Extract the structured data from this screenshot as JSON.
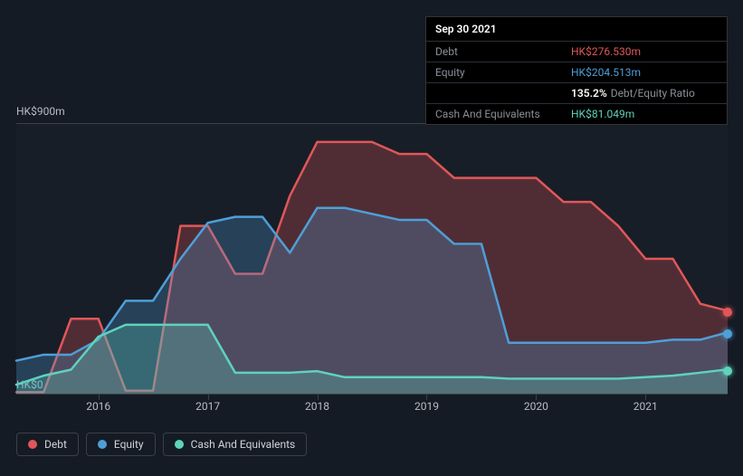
{
  "tooltip": {
    "date": "Sep 30 2021",
    "rows": [
      {
        "label": "Debt",
        "value": "HK$276.530m",
        "color": "#e15759"
      },
      {
        "label": "Equity",
        "value": "HK$204.513m",
        "color": "#4e9fd8"
      },
      {
        "label": "",
        "ratio_value": "135.2%",
        "ratio_label": "Debt/Equity Ratio"
      },
      {
        "label": "Cash And Equivalents",
        "value": "HK$81.049m",
        "color": "#5fd3bc"
      }
    ]
  },
  "chart": {
    "type": "area",
    "background_color": "#151b24",
    "grid_color": "#3a3f48",
    "text_color": "#b8bcc4",
    "y_max_label": "HK$900m",
    "y_min_label": "HK$0",
    "ylim": [
      0,
      900
    ],
    "xlim": [
      2015.25,
      2021.75
    ],
    "x_ticks": [
      2016,
      2017,
      2018,
      2019,
      2020,
      2021
    ],
    "series": [
      {
        "name": "Debt",
        "color": "#e15759",
        "fill_opacity": 0.28,
        "line_width": 2.5,
        "points": [
          [
            2015.25,
            5
          ],
          [
            2015.5,
            5
          ],
          [
            2015.75,
            250
          ],
          [
            2016.0,
            250
          ],
          [
            2016.25,
            10
          ],
          [
            2016.5,
            10
          ],
          [
            2016.75,
            560
          ],
          [
            2017.0,
            560
          ],
          [
            2017.25,
            400
          ],
          [
            2017.5,
            400
          ],
          [
            2017.75,
            660
          ],
          [
            2018.0,
            840
          ],
          [
            2018.25,
            840
          ],
          [
            2018.5,
            840
          ],
          [
            2018.75,
            800
          ],
          [
            2019.0,
            800
          ],
          [
            2019.25,
            720
          ],
          [
            2019.5,
            720
          ],
          [
            2019.75,
            720
          ],
          [
            2020.0,
            720
          ],
          [
            2020.25,
            640
          ],
          [
            2020.5,
            640
          ],
          [
            2020.75,
            560
          ],
          [
            2021.0,
            450
          ],
          [
            2021.25,
            450
          ],
          [
            2021.5,
            300
          ],
          [
            2021.75,
            276.5
          ]
        ]
      },
      {
        "name": "Equity",
        "color": "#4e9fd8",
        "fill_opacity": 0.28,
        "line_width": 2.5,
        "points": [
          [
            2015.25,
            110
          ],
          [
            2015.5,
            130
          ],
          [
            2015.75,
            130
          ],
          [
            2016.0,
            180
          ],
          [
            2016.25,
            310
          ],
          [
            2016.5,
            310
          ],
          [
            2016.75,
            450
          ],
          [
            2017.0,
            570
          ],
          [
            2017.25,
            590
          ],
          [
            2017.5,
            590
          ],
          [
            2017.75,
            470
          ],
          [
            2018.0,
            620
          ],
          [
            2018.25,
            620
          ],
          [
            2018.5,
            600
          ],
          [
            2018.75,
            580
          ],
          [
            2019.0,
            580
          ],
          [
            2019.25,
            500
          ],
          [
            2019.5,
            500
          ],
          [
            2019.75,
            170
          ],
          [
            2020.0,
            170
          ],
          [
            2020.25,
            170
          ],
          [
            2020.5,
            170
          ],
          [
            2020.75,
            170
          ],
          [
            2021.0,
            170
          ],
          [
            2021.25,
            180
          ],
          [
            2021.5,
            180
          ],
          [
            2021.75,
            204.5
          ]
        ]
      },
      {
        "name": "Cash And Equivalents",
        "color": "#5fd3bc",
        "fill_opacity": 0.28,
        "line_width": 2.5,
        "points": [
          [
            2015.25,
            30
          ],
          [
            2015.5,
            60
          ],
          [
            2015.75,
            80
          ],
          [
            2016.0,
            190
          ],
          [
            2016.25,
            230
          ],
          [
            2016.5,
            230
          ],
          [
            2016.75,
            230
          ],
          [
            2017.0,
            230
          ],
          [
            2017.25,
            70
          ],
          [
            2017.5,
            70
          ],
          [
            2017.75,
            70
          ],
          [
            2018.0,
            75
          ],
          [
            2018.25,
            55
          ],
          [
            2018.5,
            55
          ],
          [
            2018.75,
            55
          ],
          [
            2019.0,
            55
          ],
          [
            2019.25,
            55
          ],
          [
            2019.5,
            55
          ],
          [
            2019.75,
            50
          ],
          [
            2020.0,
            50
          ],
          [
            2020.25,
            50
          ],
          [
            2020.5,
            50
          ],
          [
            2020.75,
            50
          ],
          [
            2021.0,
            55
          ],
          [
            2021.25,
            60
          ],
          [
            2021.5,
            70
          ],
          [
            2021.75,
            81.0
          ]
        ]
      }
    ],
    "legend": [
      {
        "label": "Debt",
        "color": "#e15759"
      },
      {
        "label": "Equity",
        "color": "#4e9fd8"
      },
      {
        "label": "Cash And Equivalents",
        "color": "#5fd3bc"
      }
    ]
  }
}
